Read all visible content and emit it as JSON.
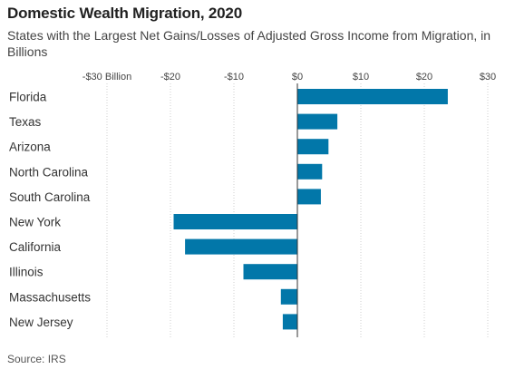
{
  "header": {
    "title": "Domestic Wealth Migration, 2020",
    "subtitle": "States with the Largest Net Gains/Losses of Adjusted Gross Income from Migration, in Billions"
  },
  "footer": {
    "source": "Source: IRS"
  },
  "colors": {
    "bar": "#0277a9",
    "grid": "#cfcfcf",
    "zero_line": "#333333"
  },
  "chart_data": {
    "type": "bar",
    "orientation": "horizontal",
    "title": "Domestic Wealth Migration, 2020",
    "subtitle": "States with the Largest Net Gains/Losses of Adjusted Gross Income from Migration, in Billions",
    "categories": [
      "Florida",
      "Texas",
      "Arizona",
      "North Carolina",
      "South Carolina",
      "New York",
      "California",
      "Illinois",
      "Massachusetts",
      "New Jersey"
    ],
    "values": [
      23.7,
      6.3,
      4.9,
      3.9,
      3.7,
      -19.5,
      -17.7,
      -8.5,
      -2.6,
      -2.3
    ],
    "xlim": [
      -30,
      30
    ],
    "xticks": [
      -30,
      -20,
      -10,
      0,
      10,
      20,
      30
    ],
    "xtick_labels": [
      "-$30 Billion",
      "-$20",
      "-$10",
      "$0",
      "$10",
      "$20",
      "$30"
    ],
    "grid": true,
    "xlabel": "",
    "ylabel": ""
  }
}
